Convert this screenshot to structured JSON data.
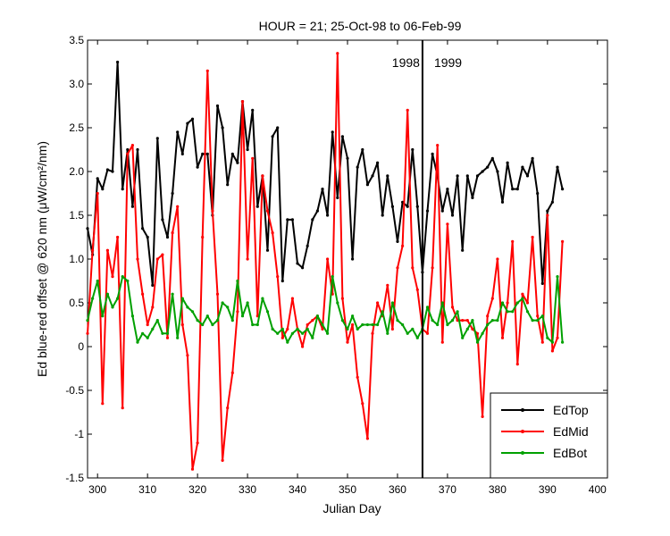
{
  "chart_data": {
    "type": "line",
    "title": "HOUR = 21; 25-Oct-98 to 06-Feb-99",
    "xlabel": "Julian Day",
    "ylabel": "Ed blue-red offset @ 620 nm (μW/cm²/nm)",
    "xlim": [
      298,
      402
    ],
    "ylim": [
      -1.5,
      3.5
    ],
    "xticks": [
      300,
      310,
      320,
      330,
      340,
      350,
      360,
      370,
      380,
      390,
      400
    ],
    "yticks": [
      -1.5,
      -1.0,
      -0.5,
      0,
      0.5,
      1.0,
      1.5,
      2.0,
      2.5,
      3.0,
      3.5
    ],
    "xtick_labels": [
      "300",
      "310",
      "320",
      "330",
      "340",
      "350",
      "360",
      "370",
      "380",
      "390",
      "400"
    ],
    "ytick_labels": [
      "-1.5",
      "-1",
      "-0.5",
      "0",
      "0.5",
      "1.0",
      "1.5",
      "2.0",
      "2.5",
      "3.0",
      "3.5"
    ],
    "grid": false,
    "legend_position": "bottom-right",
    "year_divider": {
      "x": 365,
      "left_label": "1998",
      "right_label": "1999"
    },
    "series": [
      {
        "name": "EdTop",
        "color": "#000000",
        "x": [
          298,
          299,
          300,
          301,
          302,
          303,
          304,
          305,
          306,
          307,
          308,
          309,
          310,
          311,
          312,
          313,
          314,
          315,
          316,
          317,
          318,
          319,
          320,
          321,
          322,
          323,
          324,
          325,
          326,
          327,
          328,
          329,
          330,
          331,
          332,
          333,
          334,
          335,
          336,
          337,
          338,
          339,
          340,
          341,
          342,
          343,
          344,
          345,
          346,
          347,
          348,
          349,
          350,
          351,
          352,
          353,
          354,
          355,
          356,
          357,
          358,
          359,
          360,
          361,
          362,
          363,
          364,
          365,
          366,
          367,
          368,
          369,
          370,
          371,
          372,
          373,
          374,
          375,
          376,
          377,
          378,
          379,
          380,
          381,
          382,
          383,
          384,
          385,
          386,
          387,
          388,
          389,
          390,
          391,
          392,
          393
        ],
        "y": [
          1.35,
          1.05,
          1.92,
          1.8,
          2.02,
          2.0,
          3.25,
          1.8,
          2.25,
          1.6,
          2.25,
          1.35,
          1.25,
          0.7,
          2.38,
          1.45,
          1.25,
          1.75,
          2.45,
          2.2,
          2.55,
          2.6,
          2.05,
          2.2,
          2.2,
          1.5,
          2.75,
          2.5,
          1.85,
          2.2,
          2.1,
          2.8,
          2.25,
          2.7,
          1.6,
          1.95,
          1.1,
          2.4,
          2.5,
          0.75,
          1.45,
          1.45,
          0.95,
          0.9,
          1.15,
          1.45,
          1.55,
          1.8,
          1.5,
          2.45,
          1.7,
          2.4,
          2.15,
          1.0,
          2.05,
          2.25,
          1.85,
          1.95,
          2.1,
          1.5,
          1.95,
          1.6,
          1.2,
          1.65,
          1.6,
          2.25,
          1.6,
          0.85,
          1.55,
          2.2,
          1.95,
          1.55,
          1.8,
          1.5,
          1.95,
          1.1,
          1.95,
          1.7,
          1.95,
          2.0,
          2.05,
          2.15,
          2.0,
          1.65,
          2.1,
          1.8,
          1.8,
          2.05,
          1.95,
          2.15,
          1.75,
          0.72,
          1.55,
          1.65,
          2.05,
          1.8
        ]
      },
      {
        "name": "EdMid",
        "color": "#ff0000",
        "x": [
          298,
          299,
          300,
          301,
          302,
          303,
          304,
          305,
          306,
          307,
          308,
          309,
          310,
          311,
          312,
          313,
          314,
          315,
          316,
          317,
          318,
          319,
          320,
          321,
          322,
          323,
          324,
          325,
          326,
          327,
          328,
          329,
          330,
          331,
          332,
          333,
          334,
          335,
          336,
          337,
          338,
          339,
          340,
          341,
          342,
          343,
          344,
          345,
          346,
          347,
          348,
          349,
          350,
          351,
          352,
          353,
          354,
          355,
          356,
          357,
          358,
          359,
          360,
          361,
          362,
          363,
          364,
          365,
          366,
          367,
          368,
          369,
          370,
          371,
          372,
          373,
          374,
          375,
          376,
          377,
          378,
          379,
          380,
          381,
          382,
          383,
          384,
          385,
          386,
          387,
          388,
          389,
          390,
          391,
          392,
          393
        ],
        "y": [
          0.15,
          1.1,
          1.75,
          -0.65,
          1.1,
          0.8,
          1.25,
          -0.7,
          2.2,
          2.3,
          1.0,
          0.6,
          0.25,
          0.45,
          1.0,
          1.05,
          0.1,
          1.3,
          1.6,
          0.25,
          -0.1,
          -1.4,
          -1.1,
          1.25,
          3.15,
          1.55,
          0.6,
          -1.3,
          -0.7,
          -0.3,
          0.4,
          2.8,
          1.0,
          2.15,
          0.35,
          1.95,
          1.55,
          1.3,
          0.8,
          0.1,
          0.2,
          0.55,
          0.2,
          0.0,
          0.25,
          0.3,
          0.35,
          0.2,
          1.0,
          0.6,
          3.35,
          0.55,
          0.05,
          0.25,
          -0.35,
          -0.65,
          -1.05,
          0.15,
          0.5,
          0.35,
          0.7,
          0.2,
          0.9,
          1.15,
          2.7,
          0.9,
          0.65,
          0.2,
          0.15,
          0.9,
          2.3,
          0.05,
          1.4,
          0.45,
          0.3,
          0.3,
          0.3,
          0.2,
          0.15,
          -0.8,
          0.35,
          0.55,
          1.0,
          0.1,
          0.5,
          1.2,
          -0.2,
          0.6,
          0.5,
          1.25,
          0.35,
          0.05,
          1.5,
          -0.05,
          0.1,
          1.2
        ]
      },
      {
        "name": "EdBot",
        "color": "#00a000",
        "x": [
          298,
          299,
          300,
          301,
          302,
          303,
          304,
          305,
          306,
          307,
          308,
          309,
          310,
          311,
          312,
          313,
          314,
          315,
          316,
          317,
          318,
          319,
          320,
          321,
          322,
          323,
          324,
          325,
          326,
          327,
          328,
          329,
          330,
          331,
          332,
          333,
          334,
          335,
          336,
          337,
          338,
          339,
          340,
          341,
          342,
          343,
          344,
          345,
          346,
          347,
          348,
          349,
          350,
          351,
          352,
          353,
          354,
          355,
          356,
          357,
          358,
          359,
          360,
          361,
          362,
          363,
          364,
          365,
          366,
          367,
          368,
          369,
          370,
          371,
          372,
          373,
          374,
          375,
          376,
          377,
          378,
          379,
          380,
          381,
          382,
          383,
          384,
          385,
          386,
          387,
          388,
          389,
          390,
          391,
          392,
          393
        ],
        "y": [
          0.3,
          0.55,
          0.75,
          0.35,
          0.6,
          0.45,
          0.55,
          0.8,
          0.75,
          0.35,
          0.05,
          0.15,
          0.1,
          0.2,
          0.3,
          0.15,
          0.15,
          0.6,
          0.1,
          0.55,
          0.45,
          0.4,
          0.3,
          0.25,
          0.35,
          0.25,
          0.3,
          0.5,
          0.45,
          0.3,
          0.75,
          0.35,
          0.5,
          0.25,
          0.25,
          0.55,
          0.4,
          0.2,
          0.15,
          0.2,
          0.05,
          0.15,
          0.2,
          0.15,
          0.2,
          0.1,
          0.35,
          0.25,
          0.15,
          0.8,
          0.5,
          0.3,
          0.2,
          0.35,
          0.2,
          0.25,
          0.25,
          0.25,
          0.25,
          0.4,
          0.15,
          0.5,
          0.3,
          0.25,
          0.15,
          0.2,
          0.1,
          0.2,
          0.45,
          0.3,
          0.25,
          0.5,
          0.25,
          0.3,
          0.4,
          0.1,
          0.2,
          0.3,
          0.05,
          0.15,
          0.25,
          0.3,
          0.3,
          0.5,
          0.4,
          0.4,
          0.5,
          0.55,
          0.4,
          0.3,
          0.3,
          0.35,
          0.1,
          0.05,
          0.8,
          0.05
        ]
      }
    ]
  }
}
